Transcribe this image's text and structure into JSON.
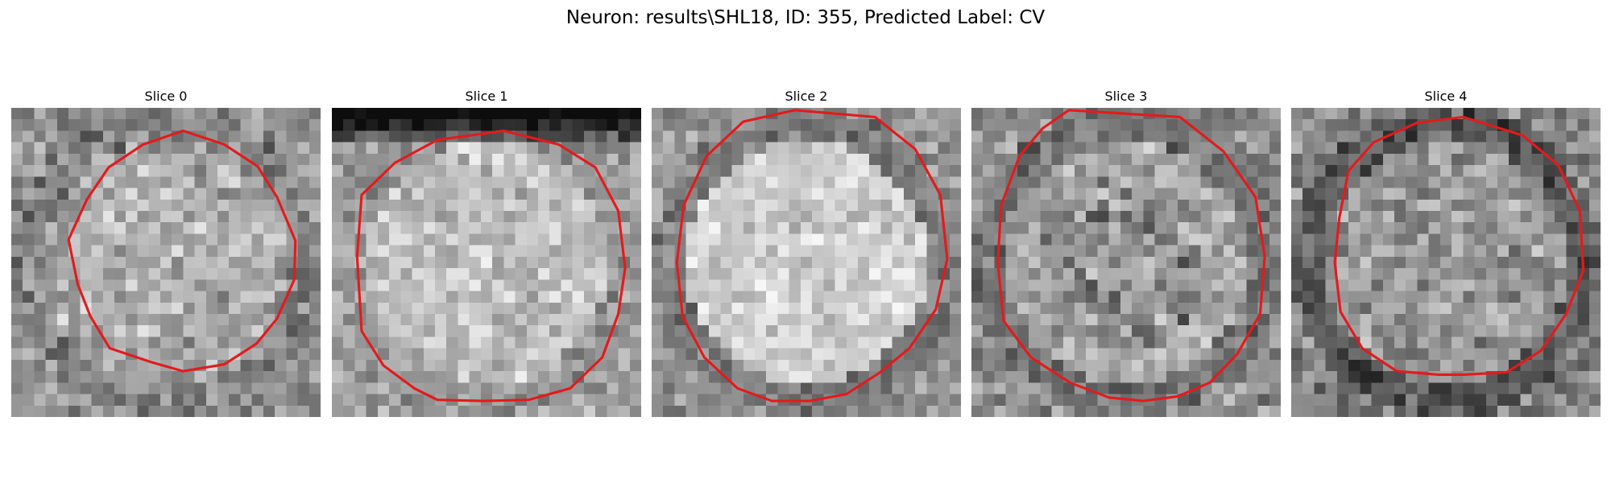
{
  "figure": {
    "title": "Neuron: results\\SHL18, ID: 355, Predicted Label: CV",
    "contour_color": "#e41a1c",
    "panels": [
      {
        "title": "Slice 0",
        "image": {
          "mean": 145,
          "contrast": 62,
          "seed": 11,
          "bright_center": 0.1,
          "dark_ring": 0.04,
          "dark_top": 0.0,
          "fill": 0.0
        },
        "contour": [
          [
            15.0,
            2.0
          ],
          [
            11.5,
            3.2
          ],
          [
            8.5,
            5.2
          ],
          [
            6.6,
            8.0
          ],
          [
            5.0,
            11.5
          ],
          [
            5.8,
            15.4
          ],
          [
            6.9,
            18.2
          ],
          [
            8.6,
            21.0
          ],
          [
            12.2,
            22.2
          ],
          [
            15.0,
            23.0
          ],
          [
            18.6,
            22.4
          ],
          [
            21.4,
            20.6
          ],
          [
            23.2,
            18.4
          ],
          [
            24.7,
            15.0
          ],
          [
            24.8,
            11.6
          ],
          [
            23.2,
            7.8
          ],
          [
            21.5,
            5.1
          ],
          [
            18.6,
            3.2
          ]
        ]
      },
      {
        "title": "Slice 1",
        "image": {
          "mean": 160,
          "contrast": 52,
          "seed": 23,
          "bright_center": 0.12,
          "dark_ring": 0.03,
          "dark_top": 0.55,
          "fill": 0.0
        },
        "contour": [
          [
            15.0,
            2.0
          ],
          [
            9.2,
            2.8
          ],
          [
            5.5,
            4.8
          ],
          [
            2.6,
            7.6
          ],
          [
            2.2,
            13.0
          ],
          [
            2.6,
            19.5
          ],
          [
            4.5,
            22.5
          ],
          [
            7.2,
            24.5
          ],
          [
            9.2,
            25.5
          ],
          [
            13.2,
            25.6
          ],
          [
            17.2,
            25.5
          ],
          [
            20.8,
            24.5
          ],
          [
            23.6,
            21.8
          ],
          [
            25.0,
            18.0
          ],
          [
            25.6,
            14.0
          ],
          [
            25.0,
            9.0
          ],
          [
            23.0,
            5.2
          ],
          [
            19.8,
            3.2
          ]
        ]
      },
      {
        "title": "Slice 2",
        "image": {
          "mean": 150,
          "contrast": 48,
          "seed": 37,
          "bright_center": 0.22,
          "dark_ring": 0.1,
          "dark_top": 0.0,
          "fill": 0.0
        },
        "contour": [
          [
            12.5,
            0.2
          ],
          [
            8.0,
            1.2
          ],
          [
            4.8,
            4.2
          ],
          [
            2.8,
            8.5
          ],
          [
            2.2,
            13.5
          ],
          [
            2.7,
            18.2
          ],
          [
            4.6,
            21.8
          ],
          [
            7.5,
            24.5
          ],
          [
            10.5,
            25.6
          ],
          [
            13.8,
            25.6
          ],
          [
            17.0,
            25.0
          ],
          [
            19.8,
            23.2
          ],
          [
            22.5,
            21.0
          ],
          [
            24.8,
            17.6
          ],
          [
            25.8,
            13.2
          ],
          [
            25.2,
            7.6
          ],
          [
            23.0,
            3.6
          ],
          [
            19.5,
            0.8
          ]
        ]
      },
      {
        "title": "Slice 3",
        "image": {
          "mean": 145,
          "contrast": 56,
          "seed": 53,
          "bright_center": 0.08,
          "dark_ring": 0.12,
          "dark_top": 0.0,
          "fill": 0.18
        },
        "contour": [
          [
            8.5,
            0.2
          ],
          [
            6.2,
            1.8
          ],
          [
            4.2,
            4.2
          ],
          [
            2.6,
            8.5
          ],
          [
            2.3,
            13.5
          ],
          [
            2.8,
            18.6
          ],
          [
            5.2,
            21.8
          ],
          [
            8.6,
            24.0
          ],
          [
            12.0,
            25.3
          ],
          [
            15.0,
            25.6
          ],
          [
            18.0,
            25.2
          ],
          [
            20.8,
            24.0
          ],
          [
            23.2,
            21.5
          ],
          [
            25.2,
            18.0
          ],
          [
            25.6,
            13.0
          ],
          [
            24.8,
            7.8
          ],
          [
            22.0,
            3.8
          ],
          [
            18.2,
            0.8
          ]
        ]
      },
      {
        "title": "Slice 4",
        "image": {
          "mean": 135,
          "contrast": 62,
          "seed": 71,
          "bright_center": 0.06,
          "dark_ring": 0.18,
          "dark_top": 0.0,
          "fill": 0.0
        },
        "contour": [
          [
            15.0,
            0.8
          ],
          [
            11.0,
            1.3
          ],
          [
            7.2,
            3.0
          ],
          [
            5.0,
            5.5
          ],
          [
            4.2,
            9.6
          ],
          [
            3.8,
            13.5
          ],
          [
            4.3,
            17.8
          ],
          [
            6.2,
            21.0
          ],
          [
            9.2,
            23.0
          ],
          [
            12.8,
            23.3
          ],
          [
            15.0,
            23.3
          ],
          [
            18.8,
            23.1
          ],
          [
            21.8,
            21.2
          ],
          [
            24.0,
            18.0
          ],
          [
            25.5,
            14.2
          ],
          [
            25.2,
            9.0
          ],
          [
            23.3,
            5.0
          ],
          [
            20.2,
            2.4
          ]
        ]
      }
    ]
  }
}
